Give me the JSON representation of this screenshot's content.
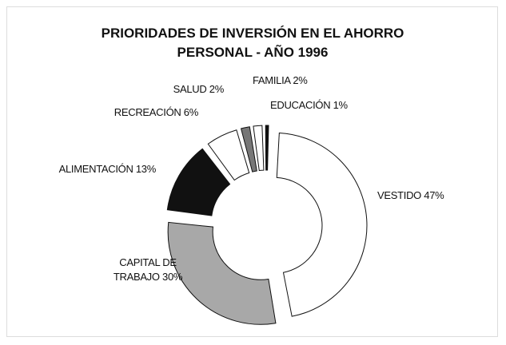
{
  "chart_data": {
    "type": "donut",
    "title": "PRIORIDADES DE INVERSIÓN EN EL AHORRO PERSONAL - AÑO 1996",
    "categories": [
      "VESTIDO",
      "CAPITAL DE TRABAJO",
      "ALIMENTACIÓN",
      "RECREACIÓN",
      "SALUD",
      "FAMILIA",
      "EDUCACIÓN"
    ],
    "values": [
      47,
      30,
      13,
      6,
      2,
      2,
      1
    ],
    "value_labels": [
      "47%",
      "30%",
      "13%",
      "6%",
      "2%",
      "2%",
      "1%"
    ],
    "colors": [
      "#ffffff",
      "#a8a8a8",
      "#111111",
      "#ffffff",
      "#777777",
      "#ffffff",
      "#111111"
    ]
  }
}
